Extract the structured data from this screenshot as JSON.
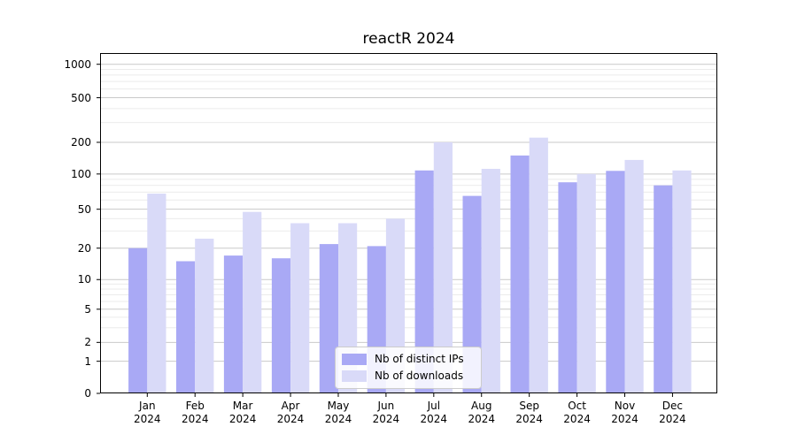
{
  "chart_data": {
    "type": "bar",
    "title": "reactR 2024",
    "categories": [
      "Jan",
      "Feb",
      "Mar",
      "Apr",
      "May",
      "Jun",
      "Jul",
      "Aug",
      "Sep",
      "Oct",
      "Nov",
      "Dec"
    ],
    "category_year": "2024",
    "series": [
      {
        "name": "Nb of distinct IPs",
        "color": "#a9a9f5",
        "values": [
          20,
          15,
          17,
          16,
          22,
          21,
          108,
          65,
          150,
          85,
          107,
          80
        ]
      },
      {
        "name": "Nb of downloads",
        "color": "#d9daf8",
        "values": [
          68,
          25,
          47,
          36,
          36,
          40,
          200,
          112,
          220,
          100,
          136,
          108
        ]
      }
    ],
    "xlabel": "",
    "ylabel": "",
    "yticks": [
      0,
      1,
      2,
      5,
      10,
      20,
      50,
      100,
      200,
      500,
      1000
    ],
    "yticks_minor": [
      3,
      4,
      6,
      7,
      8,
      9,
      30,
      40,
      60,
      70,
      80,
      90,
      300,
      400,
      600,
      700,
      800,
      900
    ],
    "ylim": [
      0,
      1200
    ],
    "yscale": "symlog",
    "grid": true,
    "legend_position": "lower center",
    "colors": {
      "background": "#ffffff",
      "grid_major": "#c9c9c9",
      "grid_minor": "#ebebeb",
      "spine": "#000000",
      "tick": "#000000"
    }
  }
}
